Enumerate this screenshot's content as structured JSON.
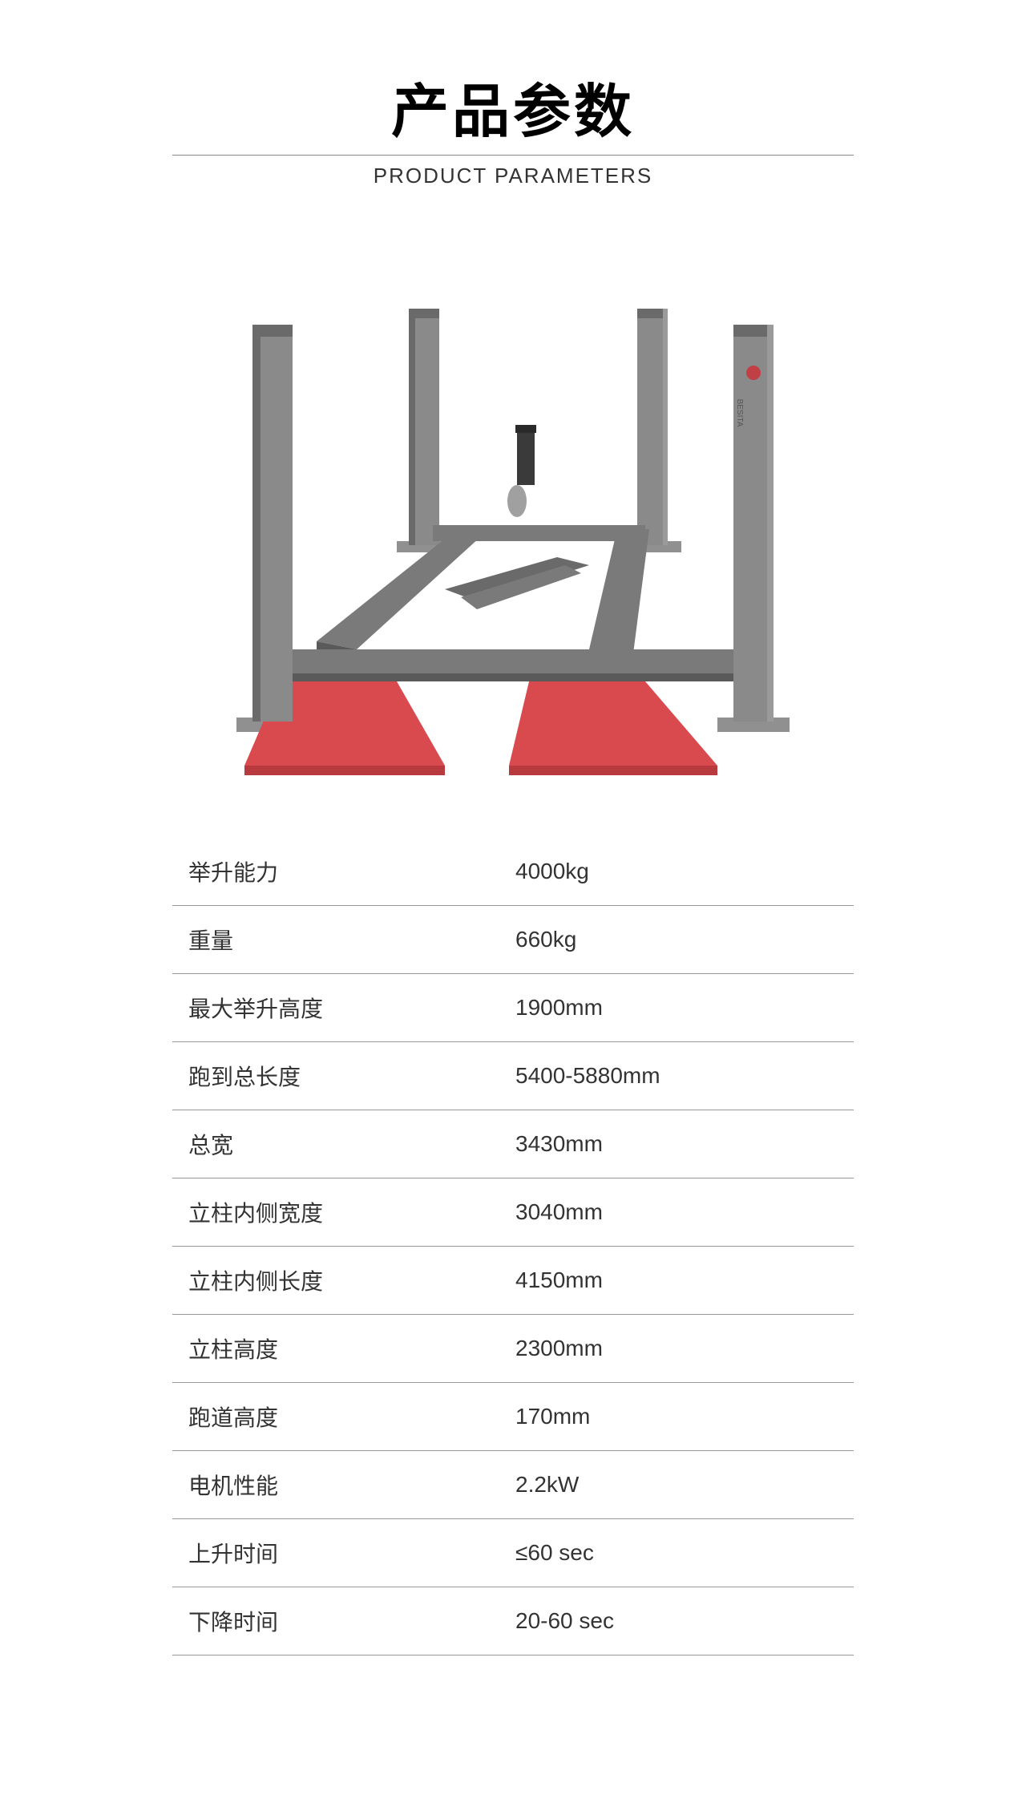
{
  "header": {
    "title_cn": "产品参数",
    "title_en": "PRODUCT PARAMETERS"
  },
  "product_image": {
    "type": "four-post-lift",
    "brand_label": "BESITA",
    "colors": {
      "post": "#8a8a8a",
      "post_dark": "#6a6a6a",
      "ramp": "#d94a4f",
      "ramp_shadow": "#b83a3f",
      "frame": "#7a7a7a",
      "frame_dark": "#5a5a5a",
      "base_plate": "#909090",
      "unit": "#888888",
      "canister": "#a0a0a0"
    }
  },
  "specs": {
    "columns": [
      "label",
      "value"
    ],
    "rows": [
      {
        "label": "举升能力",
        "value": "4000kg"
      },
      {
        "label": "重量",
        "value": "660kg"
      },
      {
        "label": "最大举升高度",
        "value": "1900mm"
      },
      {
        "label": "跑到总长度",
        "value": "5400-5880mm"
      },
      {
        "label": "总宽",
        "value": "3430mm"
      },
      {
        "label": "立柱内侧宽度",
        "value": "3040mm"
      },
      {
        "label": "立柱内侧长度",
        "value": "4150mm"
      },
      {
        "label": "立柱高度",
        "value": "2300mm"
      },
      {
        "label": "跑道高度",
        "value": "170mm"
      },
      {
        "label": "电机性能",
        "value": "2.2kW"
      },
      {
        "label": "上升时间",
        "value": "≤60 sec"
      },
      {
        "label": "下降时间",
        "value": "20-60 sec"
      }
    ],
    "styling": {
      "border_color": "#999999",
      "text_color": "#333333",
      "font_size": 28,
      "row_padding": 22
    }
  }
}
